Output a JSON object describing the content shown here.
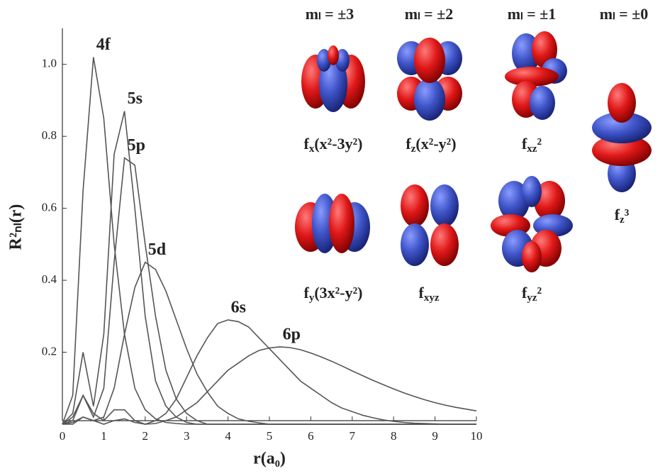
{
  "chart_data": {
    "type": "line",
    "x_label": "r(a₀)",
    "y_label": "R²ₙₗ(r)",
    "x": [
      0,
      0.25,
      0.5,
      0.75,
      1,
      1.25,
      1.5,
      1.75,
      2,
      2.25,
      2.5,
      2.75,
      3,
      3.25,
      3.5,
      3.75,
      4,
      4.25,
      4.5,
      4.75,
      5,
      5.25,
      5.5,
      5.75,
      6,
      6.25,
      6.5,
      6.75,
      7,
      7.25,
      7.5,
      7.75,
      8,
      8.25,
      8.5,
      8.75,
      9,
      9.25,
      9.5,
      9.75,
      10
    ],
    "series": [
      {
        "name": "4f",
        "color": "#555555",
        "values": [
          0,
          0.08,
          0.65,
          1.02,
          0.85,
          0.5,
          0.25,
          0.1,
          0.04,
          0.015,
          0.005,
          0.002,
          0,
          0,
          0,
          0,
          0,
          0,
          0,
          0,
          0,
          0,
          0,
          0,
          0,
          0,
          0,
          0,
          0,
          0,
          0,
          0,
          0,
          0,
          0,
          0,
          0,
          0,
          0,
          0,
          0
        ]
      },
      {
        "name": "5s",
        "color": "#555555",
        "values": [
          0,
          0.03,
          0.2,
          0.05,
          0.25,
          0.75,
          0.87,
          0.6,
          0.3,
          0.12,
          0.05,
          0.02,
          0.005,
          0,
          0,
          0,
          0,
          0,
          0,
          0,
          0,
          0,
          0,
          0,
          0,
          0,
          0,
          0,
          0,
          0,
          0,
          0,
          0,
          0,
          0,
          0,
          0,
          0,
          0,
          0,
          0
        ]
      },
      {
        "name": "5p",
        "color": "#555555",
        "values": [
          0,
          0.01,
          0.08,
          0.02,
          0.1,
          0.45,
          0.74,
          0.72,
          0.5,
          0.3,
          0.15,
          0.07,
          0.03,
          0.01,
          0,
          0,
          0,
          0,
          0,
          0,
          0,
          0,
          0,
          0,
          0,
          0,
          0,
          0,
          0,
          0,
          0,
          0,
          0,
          0,
          0,
          0,
          0,
          0,
          0,
          0,
          0
        ]
      },
      {
        "name": "5d",
        "color": "#555555",
        "values": [
          0,
          0,
          0.02,
          0.01,
          0.02,
          0.1,
          0.25,
          0.38,
          0.45,
          0.43,
          0.37,
          0.29,
          0.21,
          0.14,
          0.09,
          0.05,
          0.03,
          0.015,
          0.008,
          0.004,
          0,
          0,
          0,
          0,
          0,
          0,
          0,
          0,
          0,
          0,
          0,
          0,
          0,
          0,
          0,
          0,
          0,
          0,
          0,
          0,
          0
        ]
      },
      {
        "name": "6s",
        "color": "#555555",
        "values": [
          0,
          0.02,
          0.08,
          0.03,
          0.01,
          0.04,
          0.04,
          0.01,
          0,
          0.01,
          0.03,
          0.07,
          0.13,
          0.19,
          0.24,
          0.28,
          0.29,
          0.285,
          0.27,
          0.24,
          0.21,
          0.18,
          0.15,
          0.12,
          0.1,
          0.08,
          0.06,
          0.045,
          0.035,
          0.025,
          0.018,
          0.012,
          0.008,
          0.005,
          0.003,
          0.002,
          0.001,
          0,
          0,
          0,
          0
        ]
      },
      {
        "name": "6p",
        "color": "#555555",
        "values": [
          0,
          0.005,
          0.02,
          0.01,
          0,
          0.01,
          0.015,
          0.005,
          0,
          0.002,
          0.01,
          0.02,
          0.04,
          0.06,
          0.09,
          0.12,
          0.15,
          0.17,
          0.19,
          0.205,
          0.212,
          0.215,
          0.213,
          0.207,
          0.198,
          0.187,
          0.175,
          0.162,
          0.148,
          0.135,
          0.122,
          0.11,
          0.098,
          0.087,
          0.077,
          0.068,
          0.06,
          0.053,
          0.047,
          0.042,
          0.037
        ]
      }
    ],
    "xlim": [
      0,
      10
    ],
    "xticks": [
      0,
      1,
      2,
      3,
      4,
      5,
      6,
      7,
      8,
      9,
      10
    ],
    "ylim": [
      0,
      1.1
    ],
    "yticks": [
      0.2,
      0.4,
      0.6,
      {
        "value": 0.8,
        "label": "0.8"
      },
      {
        "value": 1,
        "label": "1.0"
      }
    ],
    "grid": false
  },
  "orbitals": {
    "ml_labels": [
      "mₗ = ±3",
      "mₗ = ±2",
      "mₗ = ±1",
      "mₗ = ±0"
    ],
    "labels": [
      {
        "main": "f",
        "sub": "x",
        "rest": "(x²-3y²)"
      },
      {
        "main": "f",
        "sub": "z",
        "rest": "(x²-y²)"
      },
      {
        "main": "f",
        "sub": "xz",
        "rest": "²"
      },
      {
        "main": "f",
        "sub": "z",
        "rest": "³"
      },
      {
        "main": "f",
        "sub": "y",
        "rest": "(3x²-y²)"
      },
      {
        "main": "f",
        "sub": "xyz"
      },
      {
        "main": "f",
        "sub": "yz",
        "rest": "²"
      }
    ]
  }
}
